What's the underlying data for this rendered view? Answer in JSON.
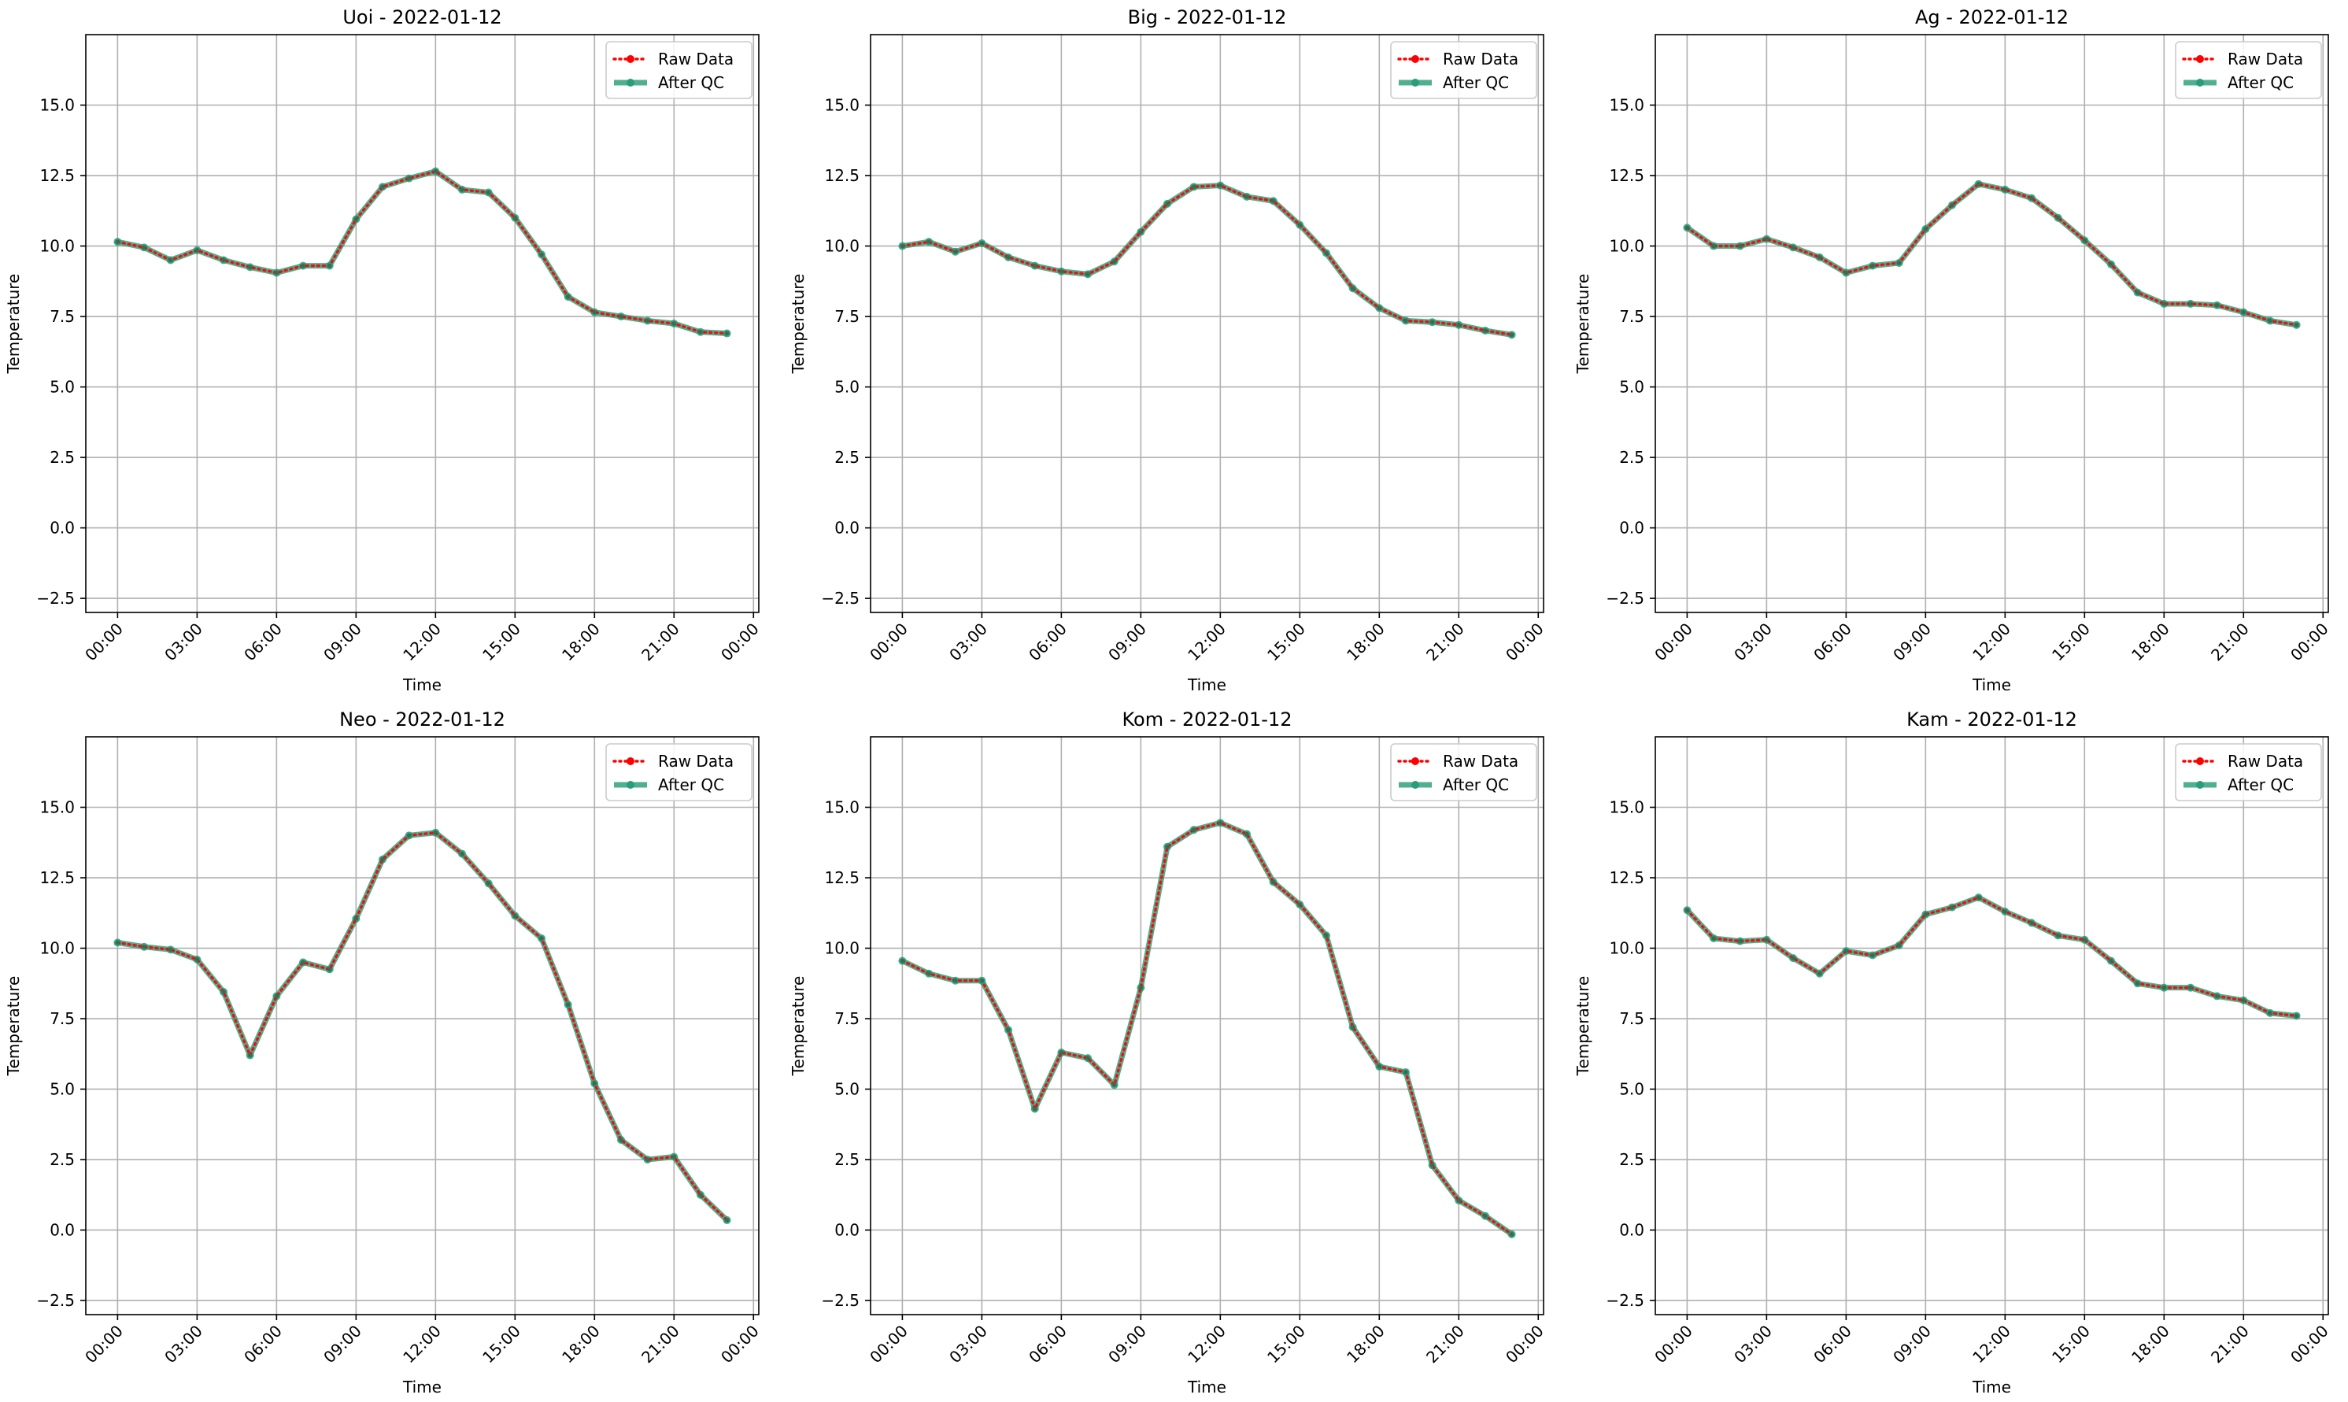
{
  "figure": {
    "background": "#ffffff"
  },
  "chart_data": [
    {
      "type": "line",
      "title": "Uoi - 2022-01-12",
      "xlabel": "Time",
      "ylabel": "Temperature",
      "x_ticks": [
        "00:00",
        "03:00",
        "06:00",
        "09:00",
        "12:00",
        "15:00",
        "18:00",
        "21:00",
        "00:00"
      ],
      "xlim_hours": [
        -1.2,
        24.2
      ],
      "ylim": [
        -3.0,
        17.5
      ],
      "y_ticks": [
        -2.5,
        0.0,
        2.5,
        5.0,
        7.5,
        10.0,
        12.5,
        15.0
      ],
      "grid": true,
      "legend_position": "top-right",
      "x": [
        "00:00",
        "01:00",
        "02:00",
        "03:00",
        "04:00",
        "05:00",
        "06:00",
        "07:00",
        "08:00",
        "09:00",
        "10:00",
        "11:00",
        "12:00",
        "13:00",
        "14:00",
        "15:00",
        "16:00",
        "17:00",
        "18:00",
        "19:00",
        "20:00",
        "21:00",
        "22:00",
        "23:00"
      ],
      "series": [
        {
          "name": "Raw Data",
          "style": "dotted",
          "color": "#ff0000",
          "values": [
            10.15,
            9.95,
            9.5,
            9.85,
            9.5,
            9.25,
            9.05,
            9.3,
            9.3,
            10.95,
            12.1,
            12.4,
            12.65,
            12.0,
            11.9,
            11.0,
            9.7,
            8.2,
            7.65,
            7.5,
            7.35,
            7.25,
            6.95,
            6.9
          ]
        },
        {
          "name": "After QC",
          "style": "solid",
          "color": "#2a9d78",
          "values": [
            10.15,
            9.95,
            9.5,
            9.85,
            9.5,
            9.25,
            9.05,
            9.3,
            9.3,
            10.95,
            12.1,
            12.4,
            12.65,
            12.0,
            11.9,
            11.0,
            9.7,
            8.2,
            7.65,
            7.5,
            7.35,
            7.25,
            6.95,
            6.9
          ]
        }
      ]
    },
    {
      "type": "line",
      "title": "Big - 2022-01-12",
      "xlabel": "Time",
      "ylabel": "Temperature",
      "x_ticks": [
        "00:00",
        "03:00",
        "06:00",
        "09:00",
        "12:00",
        "15:00",
        "18:00",
        "21:00",
        "00:00"
      ],
      "xlim_hours": [
        -1.2,
        24.2
      ],
      "ylim": [
        -3.0,
        17.5
      ],
      "y_ticks": [
        -2.5,
        0.0,
        2.5,
        5.0,
        7.5,
        10.0,
        12.5,
        15.0
      ],
      "grid": true,
      "legend_position": "top-right",
      "x": [
        "00:00",
        "01:00",
        "02:00",
        "03:00",
        "04:00",
        "05:00",
        "06:00",
        "07:00",
        "08:00",
        "09:00",
        "10:00",
        "11:00",
        "12:00",
        "13:00",
        "14:00",
        "15:00",
        "16:00",
        "17:00",
        "18:00",
        "19:00",
        "20:00",
        "21:00",
        "22:00",
        "23:00"
      ],
      "series": [
        {
          "name": "Raw Data",
          "style": "dotted",
          "color": "#ff0000",
          "values": [
            10.0,
            10.15,
            9.8,
            10.1,
            9.6,
            9.3,
            9.1,
            9.0,
            9.45,
            10.5,
            11.5,
            12.1,
            12.15,
            11.75,
            11.6,
            10.75,
            9.75,
            8.5,
            7.8,
            7.35,
            7.3,
            7.2,
            7.0,
            6.85
          ]
        },
        {
          "name": "After QC",
          "style": "solid",
          "color": "#2a9d78",
          "values": [
            10.0,
            10.15,
            9.8,
            10.1,
            9.6,
            9.3,
            9.1,
            9.0,
            9.45,
            10.5,
            11.5,
            12.1,
            12.15,
            11.75,
            11.6,
            10.75,
            9.75,
            8.5,
            7.8,
            7.35,
            7.3,
            7.2,
            7.0,
            6.85
          ]
        }
      ]
    },
    {
      "type": "line",
      "title": "Ag - 2022-01-12",
      "xlabel": "Time",
      "ylabel": "Temperature",
      "x_ticks": [
        "00:00",
        "03:00",
        "06:00",
        "09:00",
        "12:00",
        "15:00",
        "18:00",
        "21:00",
        "00:00"
      ],
      "xlim_hours": [
        -1.2,
        24.2
      ],
      "ylim": [
        -3.0,
        17.5
      ],
      "y_ticks": [
        -2.5,
        0.0,
        2.5,
        5.0,
        7.5,
        10.0,
        12.5,
        15.0
      ],
      "grid": true,
      "legend_position": "top-right",
      "x": [
        "00:00",
        "01:00",
        "02:00",
        "03:00",
        "04:00",
        "05:00",
        "06:00",
        "07:00",
        "08:00",
        "09:00",
        "10:00",
        "11:00",
        "12:00",
        "13:00",
        "14:00",
        "15:00",
        "16:00",
        "17:00",
        "18:00",
        "19:00",
        "20:00",
        "21:00",
        "22:00",
        "23:00"
      ],
      "series": [
        {
          "name": "Raw Data",
          "style": "dotted",
          "color": "#ff0000",
          "values": [
            10.65,
            10.0,
            10.0,
            10.25,
            9.95,
            9.6,
            9.05,
            9.3,
            9.4,
            10.6,
            11.45,
            12.2,
            12.0,
            11.7,
            11.0,
            10.2,
            9.35,
            8.35,
            7.95,
            7.95,
            7.9,
            7.65,
            7.35,
            7.2
          ]
        },
        {
          "name": "After QC",
          "style": "solid",
          "color": "#2a9d78",
          "values": [
            10.65,
            10.0,
            10.0,
            10.25,
            9.95,
            9.6,
            9.05,
            9.3,
            9.4,
            10.6,
            11.45,
            12.2,
            12.0,
            11.7,
            11.0,
            10.2,
            9.35,
            8.35,
            7.95,
            7.95,
            7.9,
            7.65,
            7.35,
            7.2
          ]
        }
      ]
    },
    {
      "type": "line",
      "title": "Neo - 2022-01-12",
      "xlabel": "Time",
      "ylabel": "Temperature",
      "x_ticks": [
        "00:00",
        "03:00",
        "06:00",
        "09:00",
        "12:00",
        "15:00",
        "18:00",
        "21:00",
        "00:00"
      ],
      "xlim_hours": [
        -1.2,
        24.2
      ],
      "ylim": [
        -3.0,
        17.5
      ],
      "y_ticks": [
        -2.5,
        0.0,
        2.5,
        5.0,
        7.5,
        10.0,
        12.5,
        15.0
      ],
      "grid": true,
      "legend_position": "top-right",
      "x": [
        "00:00",
        "01:00",
        "02:00",
        "03:00",
        "04:00",
        "05:00",
        "06:00",
        "07:00",
        "08:00",
        "09:00",
        "10:00",
        "11:00",
        "12:00",
        "13:00",
        "14:00",
        "15:00",
        "16:00",
        "17:00",
        "18:00",
        "19:00",
        "20:00",
        "21:00",
        "22:00",
        "23:00"
      ],
      "series": [
        {
          "name": "Raw Data",
          "style": "dotted",
          "color": "#ff0000",
          "values": [
            10.2,
            10.05,
            9.95,
            9.6,
            8.45,
            6.2,
            8.3,
            9.5,
            9.25,
            11.05,
            13.15,
            14.0,
            14.1,
            13.35,
            12.3,
            11.15,
            10.35,
            8.0,
            5.2,
            3.2,
            2.5,
            2.6,
            1.25,
            0.35
          ]
        },
        {
          "name": "After QC",
          "style": "solid",
          "color": "#2a9d78",
          "values": [
            10.2,
            10.05,
            9.95,
            9.6,
            8.45,
            6.2,
            8.3,
            9.5,
            9.25,
            11.05,
            13.15,
            14.0,
            14.1,
            13.35,
            12.3,
            11.15,
            10.35,
            8.0,
            5.2,
            3.2,
            2.5,
            2.6,
            1.25,
            0.35
          ]
        }
      ]
    },
    {
      "type": "line",
      "title": "Kom - 2022-01-12",
      "xlabel": "Time",
      "ylabel": "Temperature",
      "x_ticks": [
        "00:00",
        "03:00",
        "06:00",
        "09:00",
        "12:00",
        "15:00",
        "18:00",
        "21:00",
        "00:00"
      ],
      "xlim_hours": [
        -1.2,
        24.2
      ],
      "ylim": [
        -3.0,
        17.5
      ],
      "y_ticks": [
        -2.5,
        0.0,
        2.5,
        5.0,
        7.5,
        10.0,
        12.5,
        15.0
      ],
      "grid": true,
      "legend_position": "top-right",
      "x": [
        "00:00",
        "01:00",
        "02:00",
        "03:00",
        "04:00",
        "05:00",
        "06:00",
        "07:00",
        "08:00",
        "09:00",
        "10:00",
        "11:00",
        "12:00",
        "13:00",
        "14:00",
        "15:00",
        "16:00",
        "17:00",
        "18:00",
        "19:00",
        "20:00",
        "21:00",
        "22:00",
        "23:00"
      ],
      "series": [
        {
          "name": "Raw Data",
          "style": "dotted",
          "color": "#ff0000",
          "values": [
            9.55,
            9.1,
            8.85,
            8.85,
            7.1,
            4.3,
            6.3,
            6.1,
            5.15,
            8.6,
            13.6,
            14.2,
            14.45,
            14.05,
            12.35,
            11.55,
            10.45,
            7.2,
            5.8,
            5.6,
            2.3,
            1.05,
            0.5,
            -0.15
          ]
        },
        {
          "name": "After QC",
          "style": "solid",
          "color": "#2a9d78",
          "values": [
            9.55,
            9.1,
            8.85,
            8.85,
            7.1,
            4.3,
            6.3,
            6.1,
            5.15,
            8.6,
            13.6,
            14.2,
            14.45,
            14.05,
            12.35,
            11.55,
            10.45,
            7.2,
            5.8,
            5.6,
            2.3,
            1.05,
            0.5,
            -0.15
          ]
        }
      ]
    },
    {
      "type": "line",
      "title": "Kam - 2022-01-12",
      "xlabel": "Time",
      "ylabel": "Temperature",
      "x_ticks": [
        "00:00",
        "03:00",
        "06:00",
        "09:00",
        "12:00",
        "15:00",
        "18:00",
        "21:00",
        "00:00"
      ],
      "xlim_hours": [
        -1.2,
        24.2
      ],
      "ylim": [
        -3.0,
        17.5
      ],
      "y_ticks": [
        -2.5,
        0.0,
        2.5,
        5.0,
        7.5,
        10.0,
        12.5,
        15.0
      ],
      "grid": true,
      "legend_position": "top-right",
      "x": [
        "00:00",
        "01:00",
        "02:00",
        "03:00",
        "04:00",
        "05:00",
        "06:00",
        "07:00",
        "08:00",
        "09:00",
        "10:00",
        "11:00",
        "12:00",
        "13:00",
        "14:00",
        "15:00",
        "16:00",
        "17:00",
        "18:00",
        "19:00",
        "20:00",
        "21:00",
        "22:00",
        "23:00"
      ],
      "series": [
        {
          "name": "Raw Data",
          "style": "dotted",
          "color": "#ff0000",
          "values": [
            11.35,
            10.35,
            10.25,
            10.3,
            9.65,
            9.1,
            9.9,
            9.75,
            10.1,
            11.2,
            11.45,
            11.8,
            11.3,
            10.9,
            10.45,
            10.3,
            9.55,
            8.75,
            8.6,
            8.6,
            8.3,
            8.15,
            7.7,
            7.6
          ]
        },
        {
          "name": "After QC",
          "style": "solid",
          "color": "#2a9d78",
          "values": [
            11.35,
            10.35,
            10.25,
            10.3,
            9.65,
            9.1,
            9.9,
            9.75,
            10.1,
            11.2,
            11.45,
            11.8,
            11.3,
            10.9,
            10.45,
            10.3,
            9.55,
            8.75,
            8.6,
            8.6,
            8.3,
            8.15,
            7.7,
            7.6
          ]
        }
      ]
    }
  ]
}
